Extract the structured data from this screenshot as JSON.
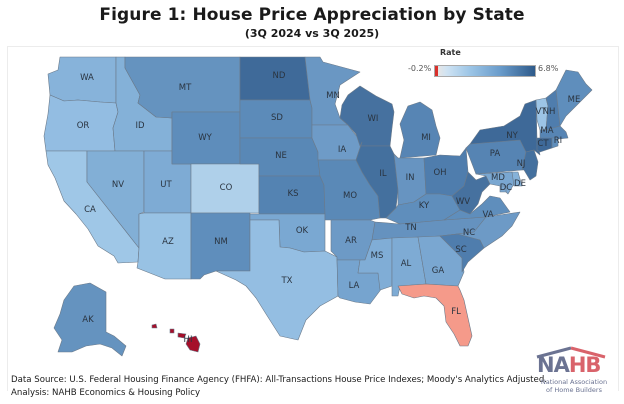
{
  "header": {
    "title": "Figure 1: House Price Appreciation by State",
    "subtitle": "(3Q 2024 vs 3Q 2025)"
  },
  "legend": {
    "title": "Rate",
    "min_label": "-0.2%",
    "max_label": "6.8%",
    "min_color": "#d9302b",
    "low_color": "#cfe3f3",
    "high_color": "#2e5a8a"
  },
  "map": {
    "states": {
      "WA": {
        "label": "WA",
        "color": "#87b3da"
      },
      "OR": {
        "label": "OR",
        "color": "#93bde2"
      },
      "CA": {
        "label": "CA",
        "color": "#9fc7e7"
      },
      "ID": {
        "label": "ID",
        "color": "#84b1d8"
      },
      "NV": {
        "label": "NV",
        "color": "#82afd6"
      },
      "UT": {
        "label": "UT",
        "color": "#7eabd4"
      },
      "AZ": {
        "label": "AZ",
        "color": "#98c2e4"
      },
      "MT": {
        "label": "MT",
        "color": "#6593bf"
      },
      "WY": {
        "label": "WY",
        "color": "#5e8dbb"
      },
      "CO": {
        "label": "CO",
        "color": "#afd0ea"
      },
      "NM": {
        "label": "NM",
        "color": "#5f8ebc"
      },
      "ND": {
        "label": "ND",
        "color": "#3f6a99"
      },
      "SD": {
        "label": "SD",
        "color": "#5c8bb9"
      },
      "NE": {
        "label": "NE",
        "color": "#5988b6"
      },
      "KS": {
        "label": "KS",
        "color": "#5483b2"
      },
      "OK": {
        "label": "OK",
        "color": "#7aa8d2"
      },
      "TX": {
        "label": "TX",
        "color": "#94bee2"
      },
      "MN": {
        "label": "MN",
        "color": "#6a97c3"
      },
      "IA": {
        "label": "IA",
        "color": "#6e9bc7"
      },
      "MO": {
        "label": "MO",
        "color": "#5a89b7"
      },
      "AR": {
        "label": "AR",
        "color": "#6d9ac6"
      },
      "LA": {
        "label": "LA",
        "color": "#76a4cf"
      },
      "WI": {
        "label": "WI",
        "color": "#46719f"
      },
      "IL": {
        "label": "IL",
        "color": "#44709e"
      },
      "MI": {
        "label": "MI",
        "color": "#5785b4"
      },
      "IN": {
        "label": "IN",
        "color": "#6794c1"
      },
      "OH": {
        "label": "OH",
        "color": "#4f7dad"
      },
      "KY": {
        "label": "KY",
        "color": "#5f8ebc"
      },
      "TN": {
        "label": "TN",
        "color": "#6592bf"
      },
      "MS": {
        "label": "MS",
        "color": "#80add6"
      },
      "AL": {
        "label": "AL",
        "color": "#7eabd4"
      },
      "GA": {
        "label": "GA",
        "color": "#7aa7d1"
      },
      "FL": {
        "label": "FL",
        "color": "#f59a8a"
      },
      "SC": {
        "label": "SC",
        "color": "#4f7dad"
      },
      "NC": {
        "label": "NC",
        "color": "#6d9ac6"
      },
      "VA": {
        "label": "VA",
        "color": "#5f8ebc"
      },
      "WV": {
        "label": "WV",
        "color": "#46719f"
      },
      "PA": {
        "label": "PA",
        "color": "#5684b3"
      },
      "NY": {
        "label": "NY",
        "color": "#3e6998"
      },
      "NJ": {
        "label": "NJ",
        "color": "#44709e"
      },
      "MD": {
        "label": "MD",
        "color": "#7aa7d1"
      },
      "DE": {
        "label": "DE",
        "color": "#86b2d9"
      },
      "DC": {
        "label": "DC",
        "color": "#7aa7d1"
      },
      "VT": {
        "label": "VT",
        "color": "#9cc4e5"
      },
      "NH": {
        "label": "NH",
        "color": "#4f7dad"
      },
      "ME": {
        "label": "ME",
        "color": "#5f8ebc"
      },
      "MA": {
        "label": "MA",
        "color": "#5785b4"
      },
      "CT": {
        "label": "CT",
        "color": "#3e6998"
      },
      "RI": {
        "label": "RI",
        "color": "#5f8ebc"
      },
      "AK": {
        "label": "AK",
        "color": "#6593bf"
      },
      "HI": {
        "label": "HI",
        "color": "#a50f2a"
      }
    }
  },
  "footer": {
    "source_line": "Data Source: U.S. Federal Housing Finance Agency (FHFA): All-Transactions House Price Indexes; Moody's Analytics Adjusted.",
    "analysis_line": "Analysis: NAHB Economics & Housing Policy"
  },
  "logo": {
    "word_na": "NA",
    "word_hb": "HB",
    "line1": "National Association",
    "line2": "of Home Builders",
    "roof_left_color": "#6b7392",
    "roof_right_color": "#d9636b"
  }
}
